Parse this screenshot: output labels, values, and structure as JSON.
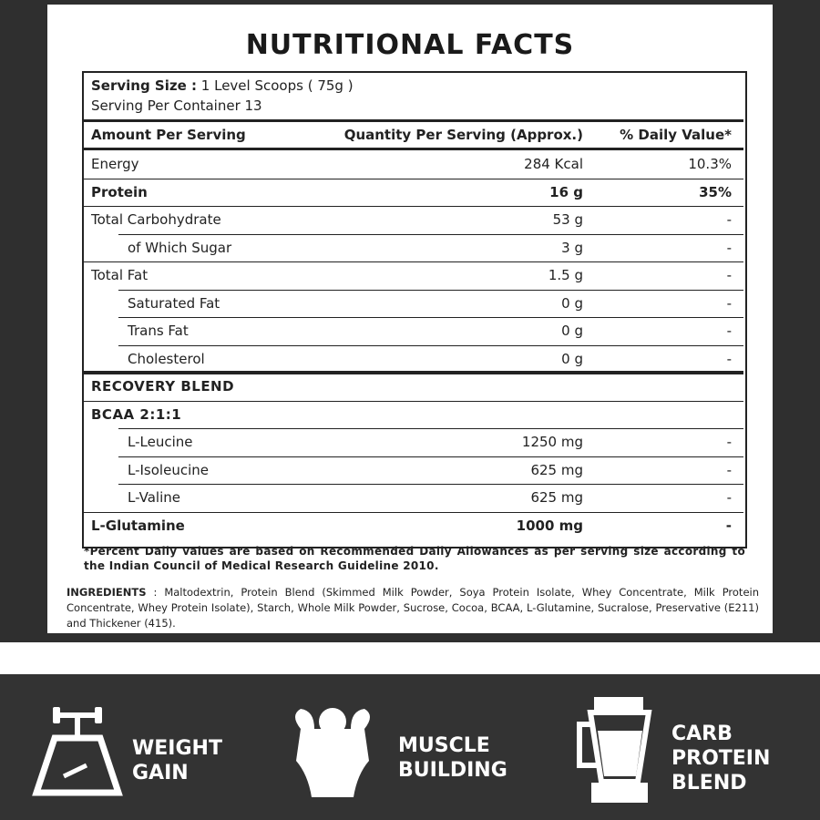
{
  "header": {
    "title": "NUTRITIONAL FACTS"
  },
  "serving": {
    "size_label": "Serving Size :",
    "size": "1 Level Scoops ( 75g )",
    "per_container": "Serving Per Container  13"
  },
  "table": {
    "columns": [
      "Amount Per Serving",
      "Quantity Per Serving (Approx.)",
      "% Daily Value*"
    ],
    "rows": [
      {
        "cells": [
          "Energy",
          "284 Kcal",
          "10.3%"
        ]
      },
      {
        "cells": [
          "Protein",
          "16 g",
          "35%"
        ],
        "bold": true
      },
      {
        "cells": [
          "Total Carbohydrate",
          "53 g",
          "-"
        ]
      },
      {
        "cells": [
          "of Which Sugar",
          "3 g",
          "-"
        ],
        "indent": true
      },
      {
        "cells": [
          "Total Fat",
          "1.5 g",
          "-"
        ]
      },
      {
        "cells": [
          "Saturated Fat",
          "0 g",
          "-"
        ],
        "indent": true
      },
      {
        "cells": [
          "Trans Fat",
          "0 g",
          "-"
        ],
        "indent": true
      },
      {
        "cells": [
          "Cholesterol",
          "0 g",
          "-"
        ],
        "indent": true
      },
      {
        "cells": [
          "RECOVERY BLEND"
        ],
        "bold": true
      },
      {
        "cells": [
          "BCAA 2:1:1"
        ],
        "bold": true
      },
      {
        "cells": [
          "L-Leucine",
          "1250 mg",
          "-"
        ],
        "indent": true
      },
      {
        "cells": [
          "L-Isoleucine",
          "625 mg",
          "-"
        ],
        "indent": true
      },
      {
        "cells": [
          "L-Valine",
          "625 mg",
          "-"
        ],
        "indent": true
      },
      {
        "cells": [
          "L-Glutamine",
          "1000 mg",
          "-"
        ],
        "bold": true
      }
    ]
  },
  "footnote": "*Percent Daily values are based on Recommended Daily Allowances as per serving size according to the Indian Council of Medical Research Guideline 2010.",
  "ingredients": {
    "label": "INGREDIENTS",
    "text": ": Maltodextrin, Protein Blend (Skimmed Milk Powder, Soya Protein Isolate, Whey Concentrate, Milk Protein Concentrate, Whey Protein Isolate), Starch, Whole Milk Powder, Sucrose, Cocoa, BCAA, L-Glutamine, Sucralose, Preservative (E211) and Thickener (415)."
  },
  "features": [
    [
      "WEIGHT",
      "GAIN"
    ],
    [
      "MUSCLE",
      "BUILDING"
    ],
    [
      "CARB",
      "PROTEIN",
      "BLEND"
    ]
  ]
}
